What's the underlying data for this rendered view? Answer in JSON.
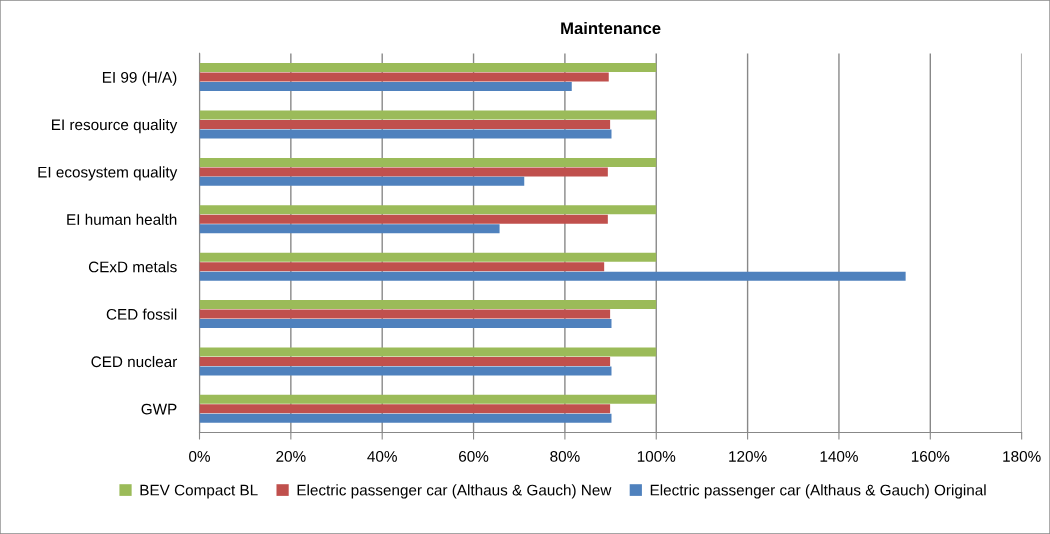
{
  "chart_data": {
    "type": "bar",
    "orientation": "horizontal",
    "title": "Maintenance",
    "categories": [
      "EI 99 (H/A)",
      "EI resource quality",
      "EI ecosystem quality",
      "EI human health",
      "CExD metals",
      "CED fossil",
      "CED nuclear",
      "GWP"
    ],
    "series": [
      {
        "name": "BEV Compact BL",
        "color": "#9bbb59",
        "values": [
          100,
          100,
          100,
          100,
          100,
          100,
          100,
          100
        ]
      },
      {
        "name": "Electric passenger car (Althaus & Gauch) New",
        "color": "#c0504d",
        "values": [
          89.6,
          89.9,
          89.4,
          89.4,
          88.6,
          89.9,
          89.9,
          89.9
        ]
      },
      {
        "name": "Electric passenger car (Althaus & Gauch) Original",
        "color": "#4f81bd",
        "values": [
          81.5,
          90.2,
          71.1,
          65.7,
          154.6,
          90.2,
          90.2,
          90.2
        ]
      }
    ],
    "xlim": [
      0,
      180
    ],
    "xticks": [
      {
        "value": 0,
        "label": "0%"
      },
      {
        "value": 20,
        "label": "20%"
      },
      {
        "value": 40,
        "label": "40%"
      },
      {
        "value": 60,
        "label": "60%"
      },
      {
        "value": 80,
        "label": "80%"
      },
      {
        "value": 100,
        "label": "100%"
      },
      {
        "value": 120,
        "label": "120%"
      },
      {
        "value": 140,
        "label": "140%"
      },
      {
        "value": 160,
        "label": "160%"
      },
      {
        "value": 180,
        "label": "180%"
      }
    ],
    "grid": "x",
    "legend": "bottom"
  }
}
